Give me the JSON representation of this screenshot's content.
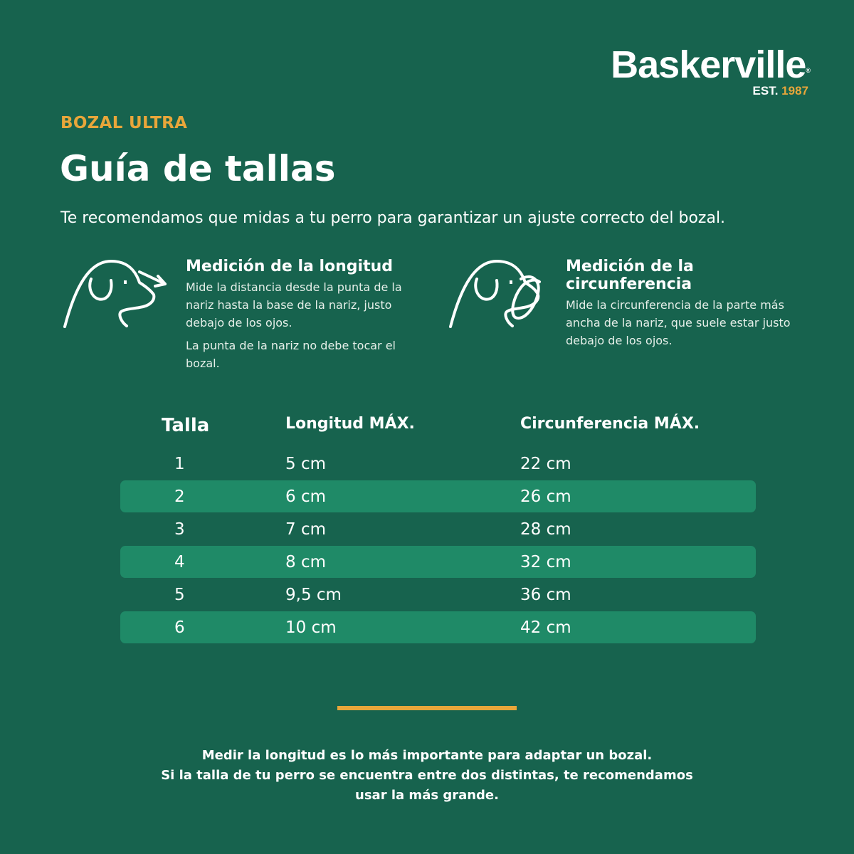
{
  "brand": {
    "name": "Baskerville",
    "registered": "®",
    "est_label": "EST.",
    "est_year": "1987"
  },
  "header": {
    "kicker": "BOZAL ULTRA",
    "title": "Guía de tallas",
    "intro": "Te recomendamos que midas a tu perro para garantizar un ajuste correcto del bozal."
  },
  "measures": [
    {
      "icon": "dog-length-icon",
      "title": "Medición de la longitud",
      "paragraphs": [
        "Mide la distancia desde la punta de la nariz hasta la base de la nariz, justo debajo de los ojos.",
        "La punta de la nariz no debe tocar el bozal."
      ]
    },
    {
      "icon": "dog-circumference-icon",
      "title": "Medición de la circunferencia",
      "paragraphs": [
        "Mide la circunferencia de la parte más ancha de la nariz, que suele estar justo debajo de los ojos."
      ]
    }
  ],
  "table": {
    "headers": [
      "Talla",
      "Longitud MÁX.",
      "Circunferencia MÁX."
    ],
    "rows": [
      [
        "1",
        "5 cm",
        "22 cm"
      ],
      [
        "2",
        "6 cm",
        "26 cm"
      ],
      [
        "3",
        "7 cm",
        "28 cm"
      ],
      [
        "4",
        "8 cm",
        "32 cm"
      ],
      [
        "5",
        "9,5 cm",
        "36 cm"
      ],
      [
        "6",
        "10 cm",
        "42 cm"
      ]
    ]
  },
  "footer": {
    "lines": [
      "Medir la longitud es lo más importante para adaptar un bozal.",
      "Si la talla de tu perro se encuentra entre dos distintas, te recomendamos",
      "usar la más grande."
    ]
  },
  "colors": {
    "background": "#17634e",
    "stripe": "#1f8a67",
    "accent": "#e8a63a"
  }
}
